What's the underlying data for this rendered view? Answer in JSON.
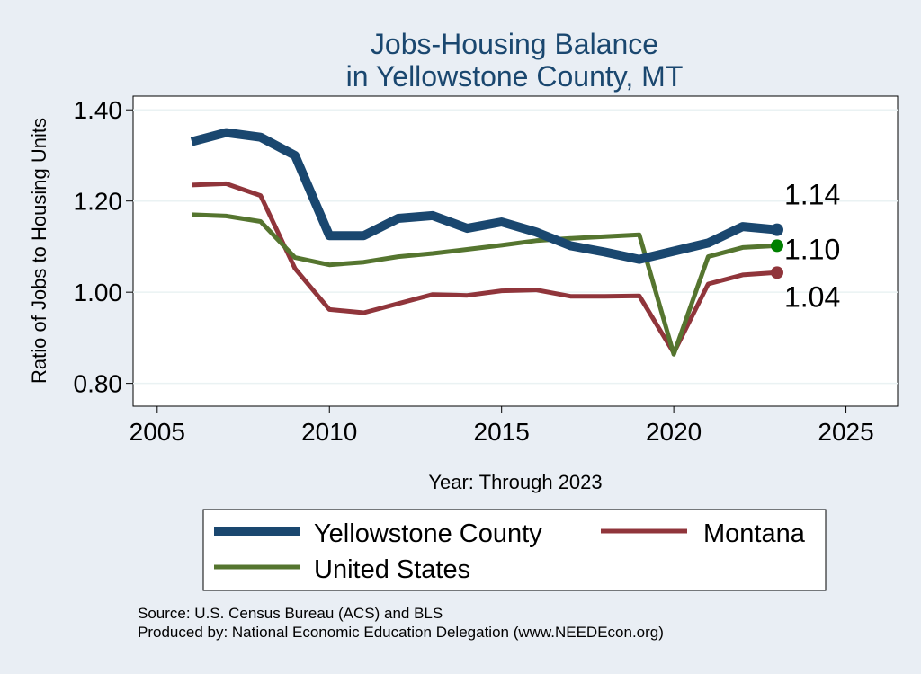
{
  "chart_data": {
    "type": "line",
    "title": [
      "Jobs-Housing Balance",
      "in Yellowstone County, MT"
    ],
    "xlabel": "Year: Through 2023",
    "ylabel": "Ratio of Jobs to Housing Units",
    "xlim": [
      2004.3,
      2026.5
    ],
    "ylim": [
      0.75,
      1.43
    ],
    "x_ticks": [
      2005,
      2010,
      2015,
      2020,
      2025
    ],
    "x_tick_labels": [
      "2005",
      "2010",
      "2015",
      "2020",
      "2025"
    ],
    "y_ticks": [
      0.8,
      1.0,
      1.2,
      1.4
    ],
    "y_tick_labels": [
      "0.80",
      "1.00",
      "1.20",
      "1.40"
    ],
    "grid": true,
    "x": [
      2006,
      2007,
      2008,
      2009,
      2010,
      2011,
      2012,
      2013,
      2014,
      2015,
      2016,
      2017,
      2018,
      2019,
      2020,
      2021,
      2022,
      2023
    ],
    "series": [
      {
        "name": "Yellowstone County",
        "color": "#1a476f",
        "width": 10,
        "values": [
          1.33,
          1.35,
          1.34,
          1.3,
          1.124,
          1.124,
          1.162,
          1.168,
          1.14,
          1.154,
          1.132,
          1.102,
          1.088,
          1.072,
          null,
          1.108,
          1.144,
          1.137
        ],
        "end_label": "1.14",
        "end_marker_color": "#1a476f"
      },
      {
        "name": "Montana",
        "color": "#90353b",
        "width": 5,
        "values": [
          1.235,
          1.238,
          1.212,
          1.052,
          0.962,
          0.955,
          0.975,
          0.995,
          0.993,
          1.003,
          1.005,
          0.991,
          0.991,
          0.992,
          0.867,
          1.018,
          1.038,
          1.043
        ],
        "end_label": "1.04",
        "end_marker_color": "#90353b"
      },
      {
        "name": "United States",
        "color": "#55752f",
        "width": 5,
        "values": [
          1.17,
          1.167,
          1.155,
          1.076,
          1.06,
          1.066,
          1.078,
          1.085,
          1.094,
          1.103,
          1.113,
          1.118,
          1.122,
          1.126,
          0.864,
          1.078,
          1.098,
          1.102
        ],
        "end_label": "1.10",
        "end_marker_color": "#008000"
      }
    ],
    "legend": {
      "placement": "bottom",
      "items": [
        "Yellowstone County",
        "Montana",
        "United States"
      ]
    }
  },
  "notes": {
    "source": "Source: U.S. Census Bureau (ACS) and BLS",
    "producer": "Produced by: National Economic Education Delegation (www.NEEDEcon.org)"
  }
}
